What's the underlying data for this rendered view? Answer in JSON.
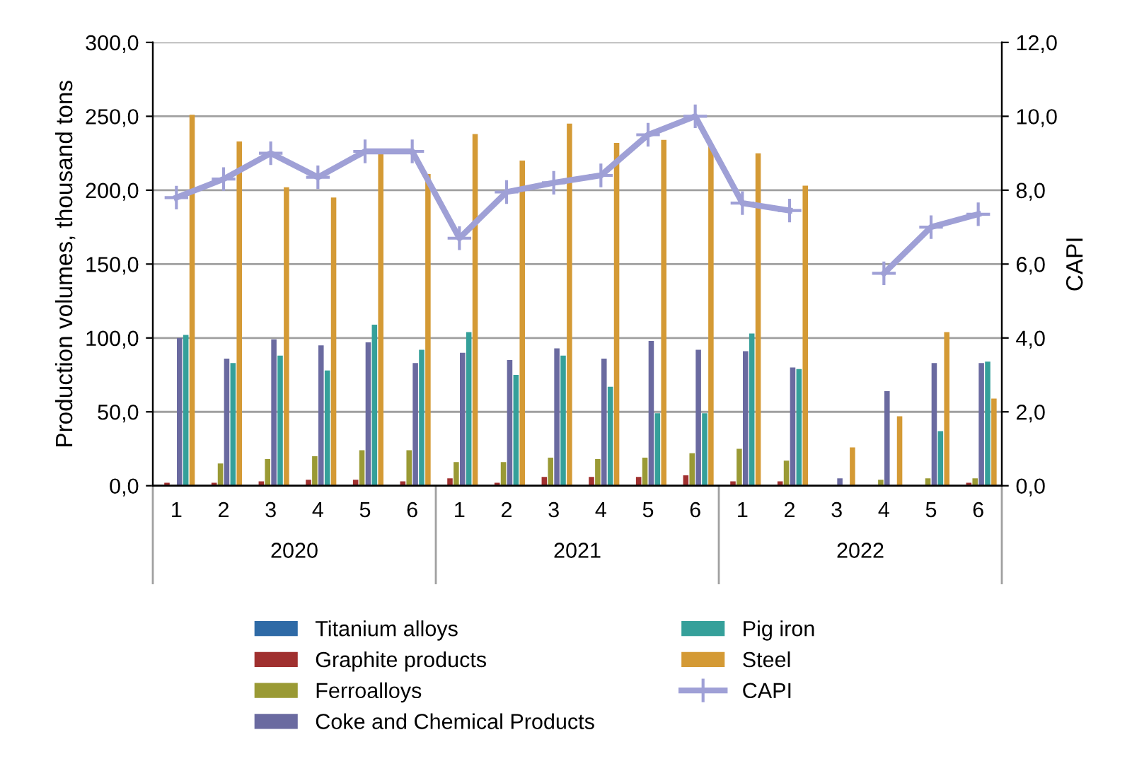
{
  "chart_data": {
    "type": "bar",
    "categories": [
      "1",
      "2",
      "3",
      "4",
      "5",
      "6",
      "1",
      "2",
      "3",
      "4",
      "5",
      "6",
      "1",
      "2",
      "3",
      "4",
      "5",
      "6"
    ],
    "annotations": [
      "2020",
      "2021",
      "2022"
    ],
    "ylabel": "Production volumes, thousand tons",
    "y2label": "CAPI",
    "ylim": [
      0,
      300
    ],
    "yticks": [
      {
        "value": 0,
        "label": "0,0"
      },
      {
        "value": 50,
        "label": "50,0"
      },
      {
        "value": 100,
        "label": "100,0"
      },
      {
        "value": 150,
        "label": "150,0"
      },
      {
        "value": 200,
        "label": "200,0"
      },
      {
        "value": 250,
        "label": "250,0"
      },
      {
        "value": 300,
        "label": "300,0"
      }
    ],
    "y2lim": [
      0,
      12
    ],
    "y2ticks": [
      {
        "value": 0,
        "label": "0,0"
      },
      {
        "value": 2,
        "label": "2,0"
      },
      {
        "value": 4,
        "label": "4,0"
      },
      {
        "value": 6,
        "label": "6,0"
      },
      {
        "value": 8,
        "label": "8,0"
      },
      {
        "value": 10,
        "label": "10,0"
      },
      {
        "value": 12,
        "label": "12,0"
      }
    ],
    "grid": "y",
    "legend": "bottom",
    "series": [
      {
        "name": "Titanium alloys",
        "color": "#2e6aa6",
        "values": [
          0,
          0,
          0,
          0,
          0,
          0,
          0,
          0,
          0,
          0,
          0,
          0,
          0,
          0,
          0,
          0,
          0,
          0
        ]
      },
      {
        "name": "Graphite products",
        "color": "#a0302f",
        "values": [
          2,
          2,
          3,
          4,
          4,
          3,
          5,
          2,
          6,
          6,
          6,
          7,
          3,
          3,
          null,
          null,
          null,
          2
        ]
      },
      {
        "name": "Ferroalloys",
        "color": "#9a9a35",
        "values": [
          0,
          15,
          18,
          20,
          24,
          24,
          16,
          16,
          19,
          18,
          19,
          22,
          25,
          17,
          null,
          4,
          5,
          5
        ]
      },
      {
        "name": "Coke and Chemical Products",
        "color": "#6a6aa0",
        "values": [
          100,
          86,
          99,
          95,
          97,
          83,
          90,
          85,
          93,
          86,
          98,
          92,
          91,
          80,
          5,
          64,
          83,
          83
        ]
      },
      {
        "name": "Pig iron",
        "color": "#35a09a",
        "values": [
          102,
          83,
          88,
          78,
          109,
          92,
          104,
          75,
          88,
          67,
          49,
          49,
          103,
          79,
          null,
          null,
          37,
          84
        ]
      },
      {
        "name": "Steel",
        "color": "#d49a35",
        "values": [
          251,
          233,
          202,
          195,
          225,
          211,
          238,
          220,
          245,
          232,
          234,
          230,
          225,
          203,
          26,
          47,
          104,
          59
        ]
      },
      {
        "name": "CAPI",
        "type": "line",
        "axis": "y2",
        "color": "#9fa0d6",
        "marker": "cross",
        "values": [
          7.8,
          8.3,
          9.0,
          8.35,
          9.05,
          9.05,
          6.7,
          7.95,
          8.2,
          8.4,
          9.5,
          10.0,
          7.65,
          7.45,
          null,
          5.75,
          7.0,
          7.35
        ]
      }
    ]
  }
}
